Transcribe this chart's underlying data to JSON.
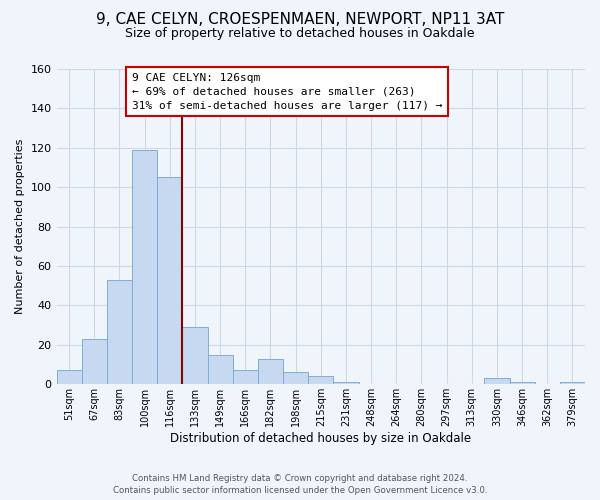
{
  "title": "9, CAE CELYN, CROESPENMAEN, NEWPORT, NP11 3AT",
  "subtitle": "Size of property relative to detached houses in Oakdale",
  "xlabel": "Distribution of detached houses by size in Oakdale",
  "ylabel": "Number of detached properties",
  "bar_labels": [
    "51sqm",
    "67sqm",
    "83sqm",
    "100sqm",
    "116sqm",
    "133sqm",
    "149sqm",
    "166sqm",
    "182sqm",
    "198sqm",
    "215sqm",
    "231sqm",
    "248sqm",
    "264sqm",
    "280sqm",
    "297sqm",
    "313sqm",
    "330sqm",
    "346sqm",
    "362sqm",
    "379sqm"
  ],
  "bar_values": [
    7,
    23,
    53,
    119,
    105,
    29,
    15,
    7,
    13,
    6,
    4,
    1,
    0,
    0,
    0,
    0,
    0,
    3,
    1,
    0,
    1
  ],
  "bar_color": "#c6d9f0",
  "bar_edge_color": "#7eadd4",
  "vline_color": "#8b0000",
  "annotation_title": "9 CAE CELYN: 126sqm",
  "annotation_line1": "← 69% of detached houses are smaller (263)",
  "annotation_line2": "31% of semi-detached houses are larger (117) →",
  "annotation_box_color": "white",
  "annotation_box_edge_color": "#cc0000",
  "ylim": [
    0,
    160
  ],
  "yticks": [
    0,
    20,
    40,
    60,
    80,
    100,
    120,
    140,
    160
  ],
  "grid_color": "#d0d8e8",
  "footer_line1": "Contains HM Land Registry data © Crown copyright and database right 2024.",
  "footer_line2": "Contains public sector information licensed under the Open Government Licence v3.0.",
  "background_color": "#f0f4fb"
}
